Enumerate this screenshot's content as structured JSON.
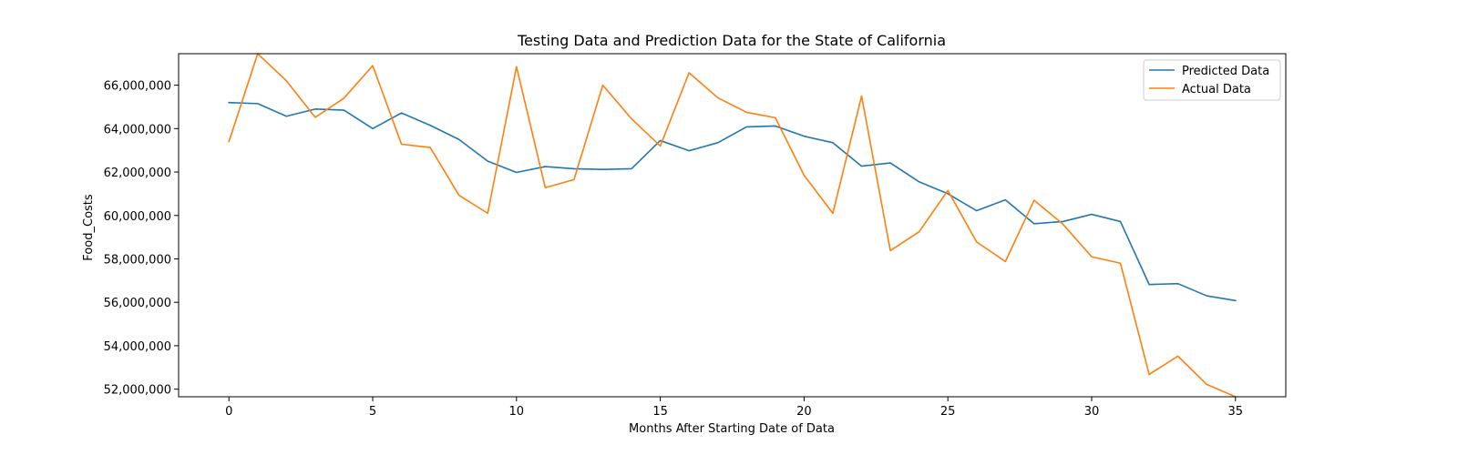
{
  "chart_data": {
    "type": "line",
    "title": "Testing Data and Prediction Data for the State of California",
    "xlabel": "Months After Starting Date of Data",
    "ylabel": "Food_Costs",
    "xlim": [
      -1.75,
      36.75
    ],
    "ylim": [
      51650000,
      67450000
    ],
    "xticks": [
      0,
      5,
      10,
      15,
      20,
      25,
      30,
      35
    ],
    "xtick_labels": [
      "0",
      "5",
      "10",
      "15",
      "20",
      "25",
      "30",
      "35"
    ],
    "yticks": [
      52000000,
      54000000,
      56000000,
      58000000,
      60000000,
      62000000,
      64000000,
      66000000
    ],
    "ytick_labels": [
      "52,000,000",
      "54,000,000",
      "56,000,000",
      "58,000,000",
      "60,000,000",
      "62,000,000",
      "64,000,000",
      "66,000,000"
    ],
    "grid": false,
    "legend_position": "top-right",
    "x": [
      0,
      1,
      2,
      3,
      4,
      5,
      6,
      7,
      8,
      9,
      10,
      11,
      12,
      13,
      14,
      15,
      16,
      17,
      18,
      19,
      20,
      21,
      22,
      23,
      24,
      25,
      26,
      27,
      28,
      29,
      30,
      31,
      32,
      33,
      34,
      35
    ],
    "series": [
      {
        "name": "Predicted Data",
        "color": "#1f77b4",
        "values": [
          65200000,
          65150000,
          64570000,
          64900000,
          64850000,
          64000000,
          64720000,
          64150000,
          63500000,
          62500000,
          61980000,
          62250000,
          62150000,
          62120000,
          62150000,
          63450000,
          62980000,
          63350000,
          64080000,
          64120000,
          63650000,
          63350000,
          62270000,
          62420000,
          61550000,
          61000000,
          60220000,
          60720000,
          59620000,
          59720000,
          60050000,
          59720000,
          56820000,
          56860000,
          56300000,
          56080000
        ]
      },
      {
        "name": "Actual Data",
        "color": "#ff7f0e",
        "values": [
          63400000,
          67450000,
          66200000,
          64520000,
          65400000,
          66900000,
          63280000,
          63130000,
          60930000,
          60100000,
          66850000,
          61280000,
          61650000,
          66000000,
          64450000,
          63200000,
          66570000,
          65420000,
          64750000,
          64500000,
          61850000,
          60100000,
          65500000,
          58380000,
          59250000,
          61150000,
          58780000,
          57880000,
          60700000,
          59600000,
          58100000,
          57800000,
          52680000,
          53520000,
          52220000,
          51650000
        ]
      }
    ]
  }
}
